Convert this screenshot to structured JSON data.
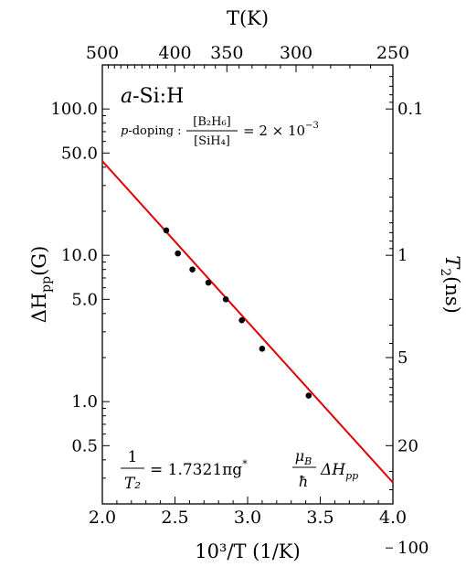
{
  "chart_data": {
    "type": "scatter",
    "x_axis_bottom": {
      "label": "10³/T (1/K)",
      "range": [
        2.0,
        4.0
      ],
      "ticks": [
        2.0,
        2.5,
        3.0,
        3.5,
        4.0
      ],
      "tick_labels": [
        "2.0",
        "2.5",
        "3.0",
        "3.5",
        "4.0"
      ]
    },
    "x_axis_top": {
      "label": "T(K)",
      "ticks": [
        500,
        400,
        350,
        300,
        250
      ],
      "tick_labels": [
        "500",
        "400",
        "350",
        "300",
        "250"
      ]
    },
    "y_axis_left": {
      "label": "ΔH",
      "label_sub": "pp",
      "label_tail": "(G)",
      "scale": "log",
      "range": [
        0.2,
        200
      ],
      "ticks": [
        0.5,
        1.0,
        5.0,
        10.0,
        50.0,
        100.0
      ],
      "tick_labels": [
        "0.5",
        "1.0",
        "5.0",
        "10.0",
        "50.0",
        "100.0"
      ]
    },
    "y_axis_right": {
      "label": "T",
      "label_sub": "2",
      "label_tail": "(ns)",
      "scale": "log",
      "ticks": [
        0.1,
        1,
        5,
        20,
        100
      ],
      "tick_labels": [
        "0.1",
        "1",
        "5",
        "20",
        "100"
      ]
    },
    "series": [
      {
        "points": [
          {
            "x": 2.44,
            "y": 14.8
          },
          {
            "x": 2.52,
            "y": 10.3
          },
          {
            "x": 2.62,
            "y": 8.0
          },
          {
            "x": 2.73,
            "y": 6.5
          },
          {
            "x": 2.85,
            "y": 5.0
          },
          {
            "x": 2.96,
            "y": 3.6
          },
          {
            "x": 3.1,
            "y": 2.3
          },
          {
            "x": 3.42,
            "y": 1.1
          }
        ],
        "color": "#000000"
      }
    ],
    "fit_line": {
      "color": "#e00000",
      "points": [
        {
          "x": 2.0,
          "y": 44
        },
        {
          "x": 4.0,
          "y": 0.28
        }
      ]
    },
    "annotations": {
      "material": "a-Si:H",
      "material_italic": "a",
      "material_rest": "-Si:H",
      "doping_prefix": "p",
      "doping_label": "-doping :",
      "doping_numerator": "[B₂H₆]",
      "doping_denominator": "[SiH₄]",
      "doping_value": "= 2 × 10",
      "doping_exponent": "−3",
      "formula_numerator": "1",
      "formula_denominator": "T₂",
      "formula_middle": "= 1.7321πg",
      "formula_star": "*",
      "formula_mu_num": "μ",
      "formula_mu_sub": "B",
      "formula_mu_den": "ħ",
      "formula_tail": "ΔH",
      "formula_tail_sub": "pp"
    },
    "grid": false,
    "legend": "none"
  }
}
